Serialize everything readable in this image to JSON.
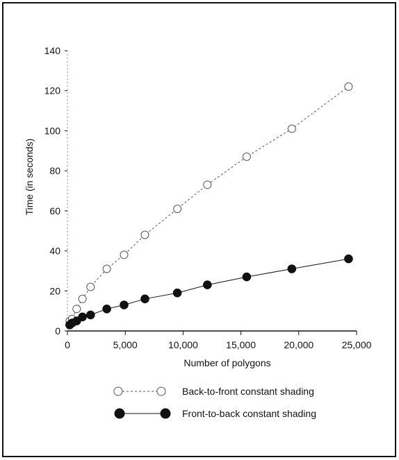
{
  "chart_data": {
    "type": "line",
    "title": "",
    "xlabel": "Number of polygons",
    "ylabel": "Time (in seconds)",
    "xlim": [
      0,
      25000
    ],
    "ylim": [
      0,
      140
    ],
    "x_ticks": [
      0,
      5000,
      10000,
      15000,
      20000,
      25000
    ],
    "x_tick_labels": [
      "0",
      "5,000",
      "10,000",
      "15,000",
      "20,000",
      "25,000"
    ],
    "y_ticks": [
      0,
      20,
      40,
      60,
      80,
      100,
      120,
      140
    ],
    "y_tick_labels": [
      "0",
      "20",
      "40",
      "60",
      "80",
      "100",
      "120",
      "140"
    ],
    "grid": false,
    "legend_position": "bottom",
    "series": [
      {
        "name": "Back-to-front constant shading",
        "marker": "open-circle",
        "line_style": "dashed",
        "color": "#555555",
        "x": [
          200,
          400,
          800,
          1300,
          2000,
          3400,
          4900,
          6700,
          9500,
          12100,
          15500,
          19400,
          24300
        ],
        "y": [
          5,
          6,
          11,
          16,
          22,
          31,
          38,
          48,
          61,
          73,
          87,
          101,
          122
        ]
      },
      {
        "name": "Front-to-back constant shading",
        "marker": "filled-circle",
        "line_style": "solid",
        "color": "#111111",
        "x": [
          200,
          400,
          800,
          1300,
          2000,
          3400,
          4900,
          6700,
          9500,
          12100,
          15500,
          19400,
          24300
        ],
        "y": [
          3,
          4,
          5,
          7,
          8,
          11,
          13,
          16,
          19,
          23,
          27,
          31,
          36
        ]
      }
    ]
  }
}
